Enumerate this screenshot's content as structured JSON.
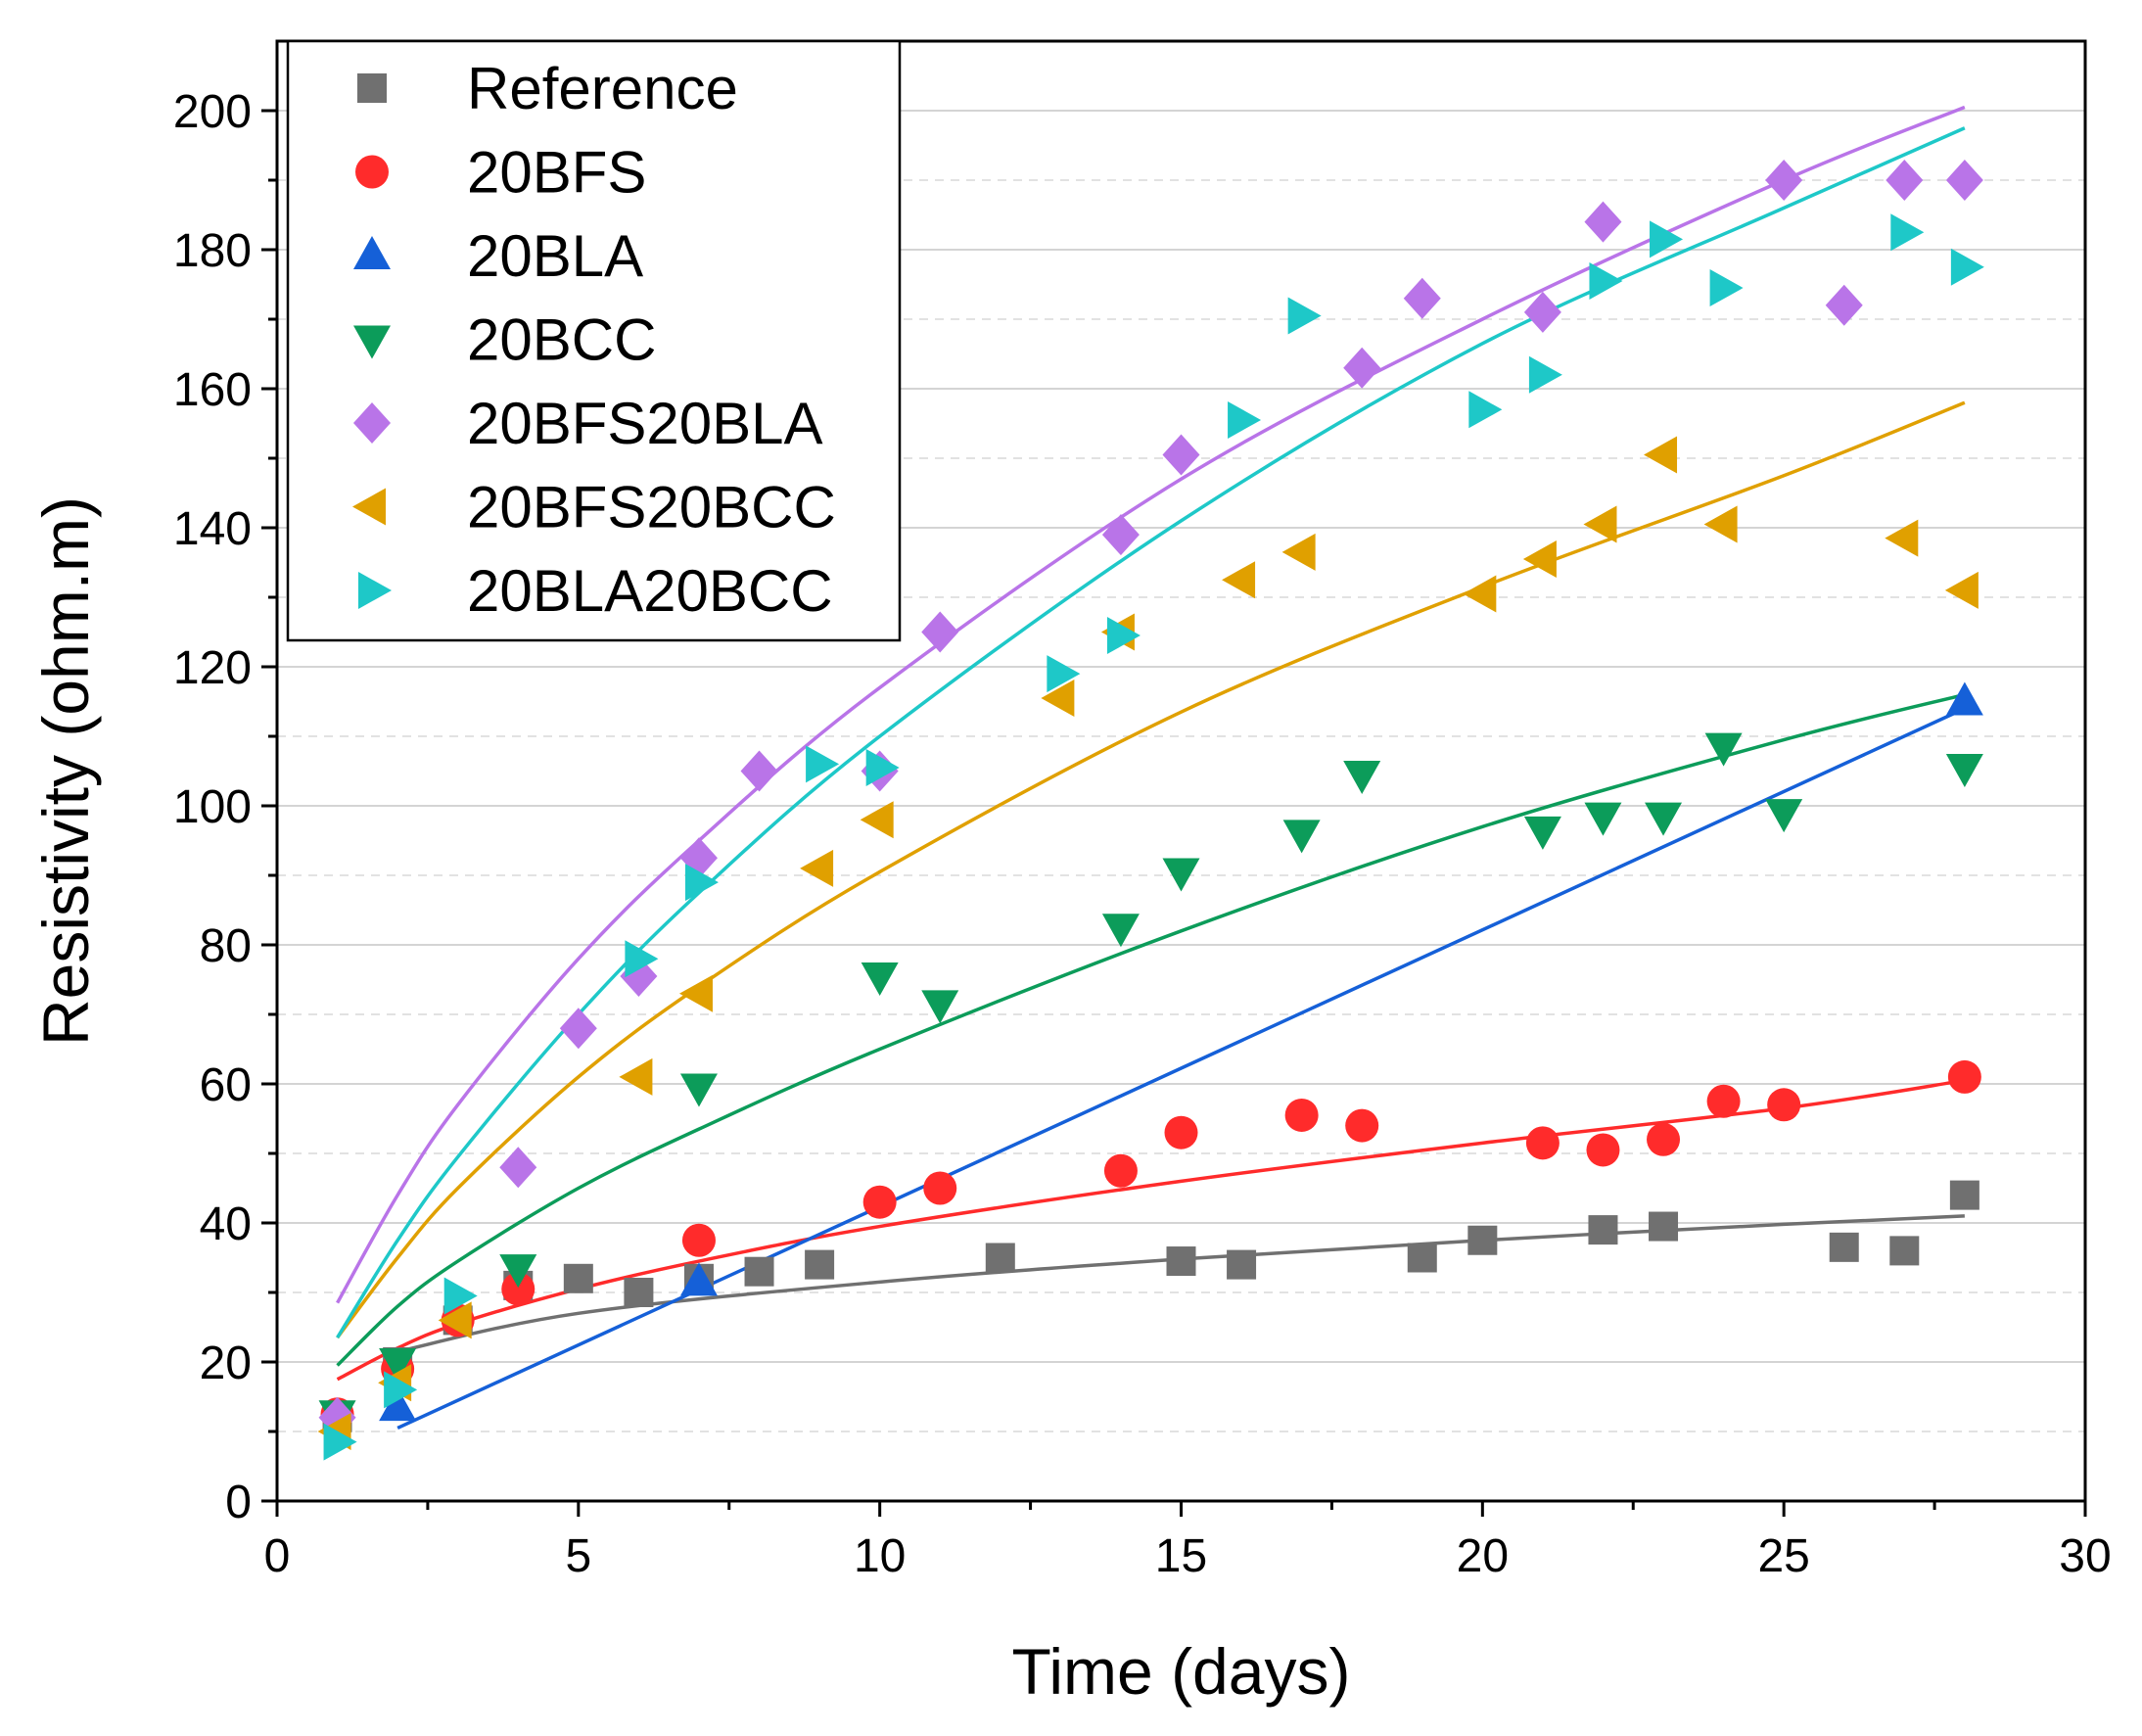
{
  "chart_data": {
    "type": "scatter",
    "title": "",
    "xlabel": "Time (days)",
    "ylabel": "Resistivity (ohm.m)",
    "xlim": [
      0,
      30
    ],
    "ylim": [
      0,
      210
    ],
    "xticks": [
      0,
      5,
      10,
      15,
      20,
      25,
      30
    ],
    "yticks": [
      0,
      20,
      40,
      60,
      80,
      100,
      120,
      140,
      160,
      180,
      200
    ],
    "grid": true,
    "legend_position": "top-left",
    "series": [
      {
        "name": "Reference",
        "color": "#707070",
        "marker": "square",
        "x": [
          1,
          2,
          3,
          4,
          5,
          6,
          7,
          8,
          9,
          12,
          15,
          16,
          19,
          20,
          22,
          23,
          26,
          27,
          28
        ],
        "y": [
          12,
          20,
          26,
          31,
          32,
          30,
          32,
          33,
          34,
          35,
          34.5,
          34,
          35,
          37.5,
          39,
          39.5,
          36.5,
          36,
          44
        ],
        "fit": {
          "x": [
            2,
            5,
            10,
            15,
            20,
            25,
            28
          ],
          "y": [
            21.5,
            27,
            31.5,
            34.8,
            37.5,
            39.8,
            41
          ]
        }
      },
      {
        "name": "20BFS",
        "color": "#ff2b2b",
        "marker": "circle",
        "x": [
          1,
          2,
          3,
          4,
          7,
          10,
          11,
          14,
          15,
          17,
          18,
          21,
          22,
          23,
          24,
          25,
          28
        ],
        "y": [
          12.5,
          19,
          26,
          30.5,
          37.5,
          43,
          45,
          47.5,
          53,
          55.5,
          54,
          51.5,
          50.5,
          52,
          57.5,
          57,
          61
        ],
        "fit": {
          "x": [
            1,
            2,
            3,
            5,
            7,
            10,
            15,
            20,
            25,
            28
          ],
          "y": [
            17.5,
            22,
            25.5,
            30.5,
            34.5,
            39.5,
            46,
            51.5,
            56.5,
            60.5
          ]
        }
      },
      {
        "name": "20BLA",
        "color": "#1560d8",
        "marker": "triangle-up",
        "x": [
          2,
          7,
          28
        ],
        "y": [
          13.5,
          31.5,
          115
        ],
        "fit": {
          "x": [
            2,
            28
          ],
          "y": [
            10.5,
            114
          ]
        }
      },
      {
        "name": "20BCC",
        "color": "#0c9c5a",
        "marker": "triangle-down",
        "x": [
          1,
          2,
          4,
          7,
          10,
          11,
          14,
          15,
          17,
          18,
          21,
          22,
          23,
          24,
          25,
          28
        ],
        "y": [
          12.5,
          20,
          33.5,
          59.5,
          75.5,
          71.5,
          82.5,
          90.5,
          96,
          104.5,
          96.5,
          98.5,
          98.5,
          108.5,
          99,
          105.5
        ],
        "fit": {
          "x": [
            1,
            2,
            3,
            5,
            7,
            10,
            15,
            20,
            25,
            28
          ],
          "y": [
            19.5,
            28,
            34.5,
            45,
            53.5,
            65,
            82,
            97,
            109.5,
            116
          ]
        }
      },
      {
        "name": "20BFS20BLA",
        "color": "#b974e8",
        "marker": "diamond",
        "x": [
          1,
          4,
          5,
          6,
          7,
          8,
          10,
          11,
          14,
          15,
          18,
          19,
          21,
          22,
          25,
          26,
          27,
          28
        ],
        "y": [
          12,
          48,
          68,
          75.5,
          92.5,
          105,
          105,
          125,
          139,
          150.5,
          163,
          173,
          171,
          184,
          190,
          172,
          190,
          190
        ],
        "fit": {
          "x": [
            1,
            2,
            3,
            5,
            7,
            10,
            15,
            20,
            25,
            28
          ],
          "y": [
            28.5,
            44,
            57,
            78,
            95,
            117,
            147,
            170,
            190,
            200.5
          ]
        }
      },
      {
        "name": "20BFS20BCC",
        "color": "#e0a000",
        "marker": "triangle-left",
        "x": [
          1,
          2,
          3,
          6,
          7,
          9,
          10,
          13,
          14,
          16,
          17,
          20,
          21,
          22,
          23,
          24,
          27,
          28
        ],
        "y": [
          10,
          17,
          26,
          61,
          73,
          91,
          98,
          115.5,
          125,
          132.5,
          136.5,
          130.5,
          135.5,
          140.5,
          150.5,
          140.5,
          138.5,
          131
        ],
        "fit": {
          "x": [
            1,
            2,
            3,
            5,
            7,
            10,
            15,
            20,
            25,
            28
          ],
          "y": [
            23.5,
            35,
            45,
            61,
            74,
            90.5,
            113.5,
            131.5,
            147.5,
            158
          ]
        }
      },
      {
        "name": "20BLA20BCC",
        "color": "#1ec8c8",
        "marker": "triangle-right",
        "x": [
          1,
          2,
          3,
          6,
          7,
          9,
          10,
          13,
          14,
          16,
          17,
          20,
          21,
          22,
          23,
          24,
          27,
          28
        ],
        "y": [
          8.5,
          16,
          29.5,
          78,
          89,
          106,
          105.5,
          119,
          124.5,
          155.5,
          170.5,
          157,
          162,
          175.5,
          181.5,
          174.5,
          182.5,
          177.5
        ],
        "fit": {
          "x": [
            1,
            2,
            3,
            5,
            7,
            10,
            15,
            20,
            25,
            28
          ],
          "y": [
            23.5,
            37.5,
            49.5,
            70,
            87.5,
            110,
            141,
            166.5,
            186,
            197.5
          ]
        }
      }
    ]
  }
}
